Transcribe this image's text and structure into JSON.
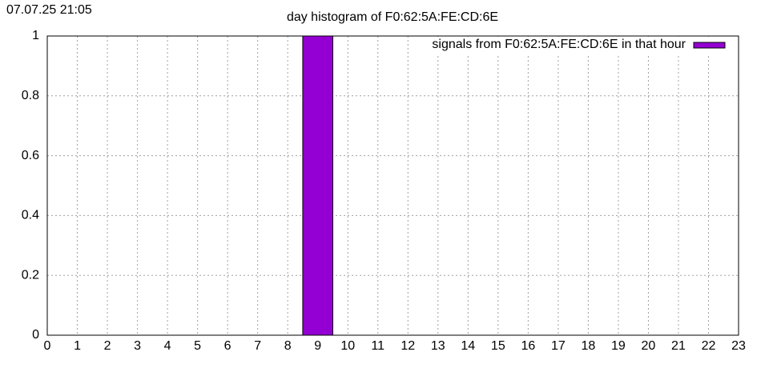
{
  "chart_data": {
    "type": "bar",
    "timestamp": "07.07.25 21:05",
    "title": "day histogram of F0:62:5A:FE:CD:6E",
    "x": [
      0,
      1,
      2,
      3,
      4,
      5,
      6,
      7,
      8,
      9,
      10,
      11,
      12,
      13,
      14,
      15,
      16,
      17,
      18,
      19,
      20,
      21,
      22,
      23
    ],
    "series": [
      {
        "name": "signals from F0:62:5A:FE:CD:6E in that hour",
        "color": "#9400d3",
        "values": [
          0,
          0,
          0,
          0,
          0,
          0,
          0,
          0,
          0,
          1,
          0,
          0,
          0,
          0,
          0,
          0,
          0,
          0,
          0,
          0,
          0,
          0,
          0,
          0
        ]
      }
    ],
    "xlim": [
      0,
      23
    ],
    "xticks": [
      0,
      1,
      2,
      3,
      4,
      5,
      6,
      7,
      8,
      9,
      10,
      11,
      12,
      13,
      14,
      15,
      16,
      17,
      18,
      19,
      20,
      21,
      22,
      23
    ],
    "ylim": [
      0,
      1
    ],
    "yticks": [
      0,
      0.2,
      0.4,
      0.6,
      0.8,
      1
    ],
    "grid": true,
    "legend_position": "top-right"
  }
}
